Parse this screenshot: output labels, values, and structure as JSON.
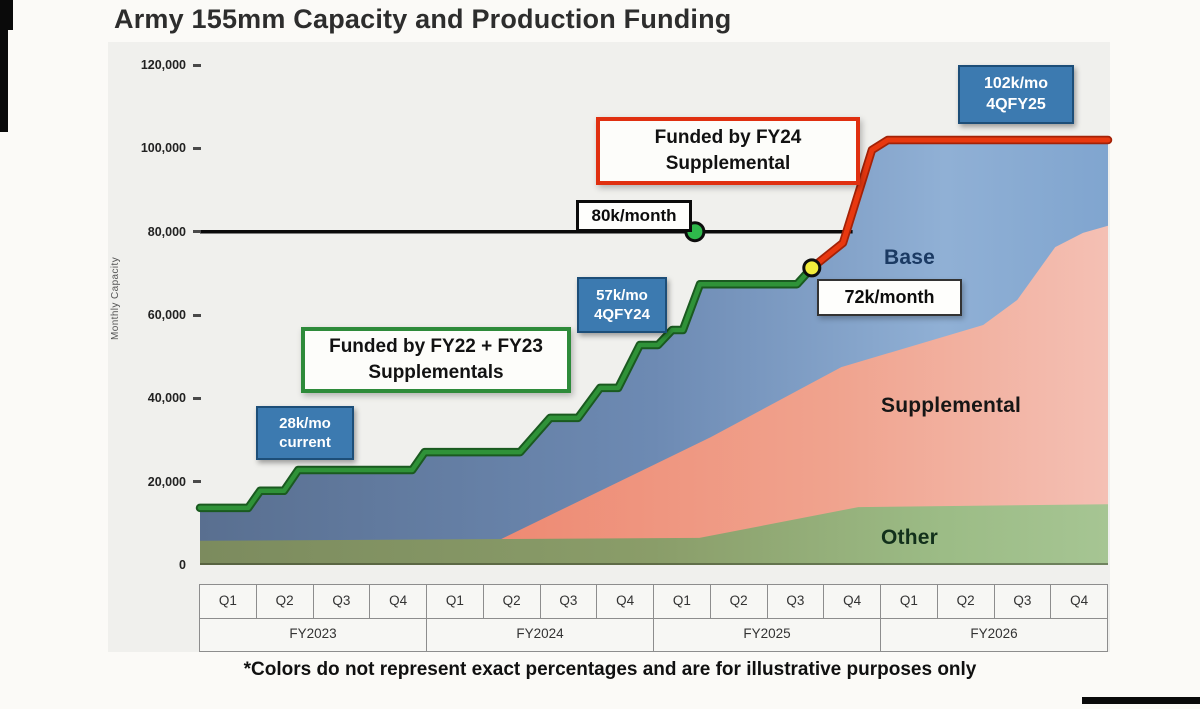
{
  "title": "Army 155mm Capacity and Production Funding",
  "footnote": "*Colors do not represent exact percentages and are for illustrative purposes only",
  "axis": {
    "ylabel": "Monthly Capacity",
    "yticks": [
      {
        "label": "120,000",
        "value": 120000
      },
      {
        "label": "100,000",
        "value": 100000
      },
      {
        "label": "80,000",
        "value": 80000
      },
      {
        "label": "60,000",
        "value": 60000
      },
      {
        "label": "40,000",
        "value": 40000
      },
      {
        "label": "20,000",
        "value": 20000
      },
      {
        "label": "0",
        "value": 0
      }
    ],
    "quarters": [
      "Q1",
      "Q2",
      "Q3",
      "Q4",
      "Q1",
      "Q2",
      "Q3",
      "Q4",
      "Q1",
      "Q2",
      "Q3",
      "Q4",
      "Q1",
      "Q2",
      "Q3",
      "Q4"
    ],
    "years": [
      "FY2023",
      "FY2024",
      "FY2025",
      "FY2026"
    ]
  },
  "annotations": {
    "current": {
      "line1": "28k/mo",
      "line2": "current"
    },
    "fy24_milestone": {
      "line1": "57k/mo",
      "line2": "4QFY24"
    },
    "fy25_milestone": {
      "line1": "102k/mo",
      "line2": "4QFY25"
    },
    "funded_fy2223": {
      "line1": "Funded by FY22 + FY23",
      "line2": "Supplementals"
    },
    "funded_fy24": {
      "line1": "Funded by FY24",
      "line2": "Supplemental"
    },
    "target_80k": "80k/month",
    "base_72k": "72k/month",
    "area_base": "Base",
    "area_supplemental": "Supplemental",
    "area_other": "Other"
  },
  "colors": {
    "green_line": "#2f9238",
    "green_line_edge": "#1a5a20",
    "red_line": "#e8380f",
    "red_line_edge": "#a32207",
    "target_line": "#0a0a0a",
    "green_dot": "#2eb84b",
    "yellow_dot": "#f2ec3c",
    "blue_box_bg": "#3c7ab0",
    "blue_box_border": "#1d4e78",
    "fy2223_border": "#2e8b3a",
    "fy24_border": "#e03010",
    "base_label_color": "#1b3a63",
    "supplemental_label_color": "#161616",
    "other_label_color": "#12301b",
    "base_stops": [
      {
        "o": 0,
        "c": "#596f90"
      },
      {
        "o": 50,
        "c": "#6d8ab3"
      },
      {
        "o": 82,
        "c": "#90b0d5"
      },
      {
        "o": 100,
        "c": "#80a5cf"
      }
    ],
    "supplemental_stops": [
      {
        "o": 0,
        "c": "#ee8a73"
      },
      {
        "o": 55,
        "c": "#f0a38e"
      },
      {
        "o": 100,
        "c": "#f4c0b4"
      }
    ],
    "other_stops": [
      {
        "o": 0,
        "c": "#7c8b5e"
      },
      {
        "o": 50,
        "c": "#8a9d69"
      },
      {
        "o": 82,
        "c": "#9cbc86"
      },
      {
        "o": 100,
        "c": "#a6c593"
      }
    ]
  },
  "chart_data": {
    "type": "area",
    "title": "Army 155mm Capacity and Production Funding",
    "ylabel": "Monthly Capacity",
    "ylim": [
      0,
      120000
    ],
    "x_unit": "fiscal quarters q=0..16 spanning FY2023 Q1 through FY2026 Q4",
    "stack_order_bottom_to_top": [
      "Other",
      "Supplemental",
      "Base"
    ],
    "funded_line_green": {
      "name": "Funded by FY22 + FY23 Supplementals",
      "points": [
        [
          0,
          13700
        ],
        [
          0.85,
          13700
        ],
        [
          1.06,
          17800
        ],
        [
          1.48,
          17800
        ],
        [
          1.73,
          22800
        ],
        [
          3.74,
          22800
        ],
        [
          3.96,
          27100
        ],
        [
          5.64,
          27100
        ],
        [
          6.17,
          35300
        ],
        [
          6.66,
          35300
        ],
        [
          7.05,
          42500
        ],
        [
          7.37,
          42500
        ],
        [
          7.75,
          52800
        ],
        [
          8.07,
          52800
        ],
        [
          8.32,
          56400
        ],
        [
          8.51,
          56400
        ],
        [
          8.81,
          67400
        ],
        [
          10.52,
          67400
        ],
        [
          10.78,
          71300
        ]
      ]
    },
    "funded_line_red": {
      "name": "Funded by FY24 Supplemental",
      "points": [
        [
          10.78,
          71300
        ],
        [
          11.33,
          77300
        ],
        [
          11.84,
          99600
        ],
        [
          12.12,
          102000
        ],
        [
          16,
          102000
        ]
      ]
    },
    "target_line": {
      "label": "80k/month",
      "value": 80000,
      "q_start": 0,
      "q_end": 11.5
    },
    "markers": [
      {
        "q": 8.72,
        "value": 80000,
        "color": "green_dot",
        "r": 9
      },
      {
        "q": 10.78,
        "value": 71300,
        "color": "yellow_dot",
        "r": 8
      }
    ],
    "areas": {
      "supplemental": {
        "label": "Supplemental",
        "outline": [
          [
            5.3,
            6200
          ],
          [
            9.0,
            30700
          ],
          [
            11.3,
            47500
          ],
          [
            13.8,
            57600
          ],
          [
            14.4,
            63600
          ],
          [
            15.07,
            76300
          ],
          [
            15.56,
            79700
          ],
          [
            16,
            81400
          ],
          [
            16,
            0
          ],
          [
            5.3,
            0
          ]
        ]
      },
      "other": {
        "label": "Other",
        "outline": [
          [
            0,
            5800
          ],
          [
            8.8,
            6500
          ],
          [
            11.6,
            13900
          ],
          [
            16,
            14600
          ],
          [
            16,
            0
          ],
          [
            0,
            0
          ]
        ]
      }
    },
    "milestones": [
      {
        "label": "28k/mo current",
        "value": 28000
      },
      {
        "label": "57k/mo 4QFY24",
        "value": 57000
      },
      {
        "label": "72k/month",
        "value": 72000
      },
      {
        "label": "80k/month",
        "value": 80000
      },
      {
        "label": "102k/mo 4QFY25",
        "value": 102000
      }
    ]
  }
}
